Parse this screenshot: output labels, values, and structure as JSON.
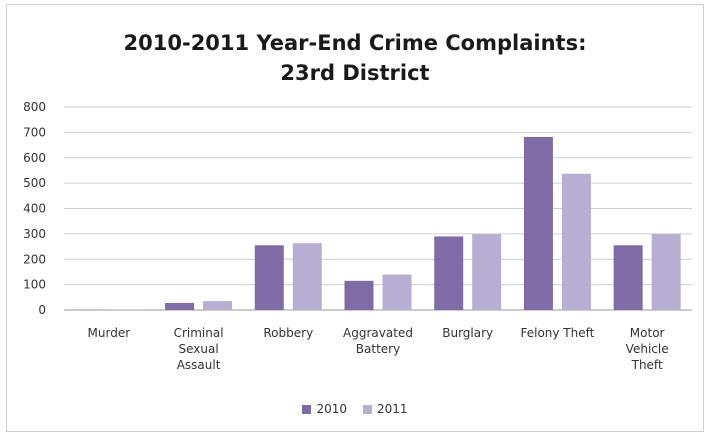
{
  "chart_data": {
    "type": "bar",
    "title_lines": [
      "2010-2011 Year-End Crime Complaints:",
      "23rd District"
    ],
    "categories": [
      [
        "Murder"
      ],
      [
        "Criminal",
        "Sexual",
        "Assault"
      ],
      [
        "Robbery"
      ],
      [
        "Aggravated",
        "Battery"
      ],
      [
        "Burglary"
      ],
      [
        "Felony Theft"
      ],
      [
        "Motor",
        "Vehicle",
        "Theft"
      ]
    ],
    "series": [
      {
        "name": "2010",
        "color": "#7f6ca7",
        "values": [
          1,
          28,
          255,
          115,
          290,
          682,
          255
        ]
      },
      {
        "name": "2011",
        "color": "#b7aed2",
        "values": [
          1,
          35,
          263,
          140,
          300,
          537,
          300
        ]
      }
    ],
    "ylim": [
      0,
      800
    ],
    "yticks": [
      "0",
      "100",
      "200",
      "300",
      "400",
      "500",
      "600",
      "700",
      "800"
    ],
    "grid": true,
    "legend_position": "bottom"
  }
}
